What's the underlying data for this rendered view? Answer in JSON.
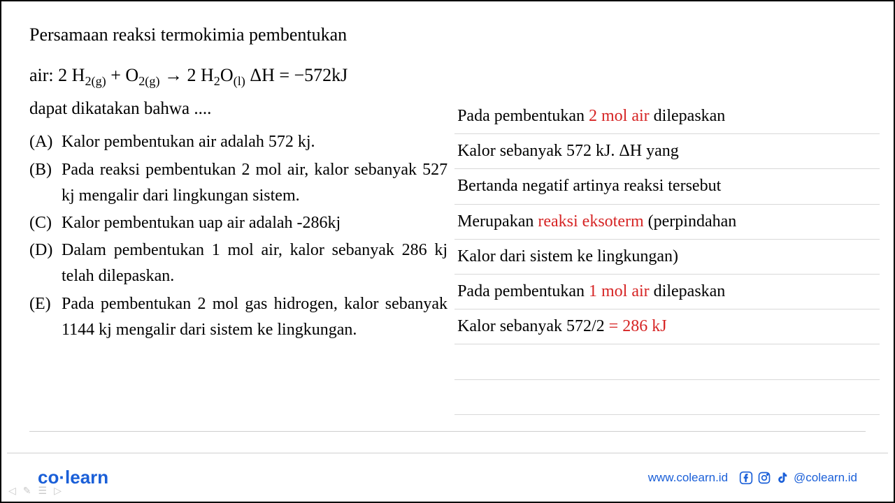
{
  "question": {
    "title": "Persamaan reaksi termokimia pembentukan",
    "equation_prefix": "air:",
    "equation_html": "2 H<sub>2(g)</sub> + O<sub>2(g)</sub> → 2 H<sub>2</sub>O<sub>(l)</sub> ΔH = −572kJ",
    "statement": "dapat dikatakan bahwa ....",
    "options": [
      {
        "label": "(A)",
        "text": "Kalor pembentukan air adalah 572 kj."
      },
      {
        "label": "(B)",
        "text": "Pada reaksi pembentukan 2 mol air, kalor sebanyak 527 kj mengalir dari lingkungan sistem."
      },
      {
        "label": "(C)",
        "text": "Kalor pembentukan uap air adalah -286kj"
      },
      {
        "label": "(D)",
        "text": "Dalam pembentukan 1 mol air, kalor sebanyak 286 kj telah dilepaskan."
      },
      {
        "label": "(E)",
        "text": "Pada pembentukan 2 mol gas hidrogen, kalor sebanyak 1144 kj mengalir dari sistem ke lingkungan."
      }
    ]
  },
  "notes": {
    "lines": [
      {
        "parts": [
          {
            "t": "Pada pembentukan "
          },
          {
            "t": "2 mol air",
            "red": true
          },
          {
            "t": " dilepaskan"
          }
        ]
      },
      {
        "parts": [
          {
            "t": "Kalor sebanyak 572 kJ. ΔH yang"
          }
        ]
      },
      {
        "parts": [
          {
            "t": "Bertanda negatif artinya reaksi tersebut"
          }
        ]
      },
      {
        "parts": [
          {
            "t": "Merupakan "
          },
          {
            "t": "reaksi eksoterm",
            "red": true
          },
          {
            "t": " (perpindahan"
          }
        ]
      },
      {
        "parts": [
          {
            "t": "Kalor dari sistem ke lingkungan)"
          }
        ]
      },
      {
        "parts": [
          {
            "t": "Pada pembentukan "
          },
          {
            "t": "1 mol air",
            "red": true
          },
          {
            "t": " dilepaskan"
          }
        ]
      },
      {
        "parts": [
          {
            "t": "Kalor sebanyak 572/2 "
          },
          {
            "t": "= 286 kJ",
            "red": true
          }
        ]
      },
      {
        "parts": [
          {
            "t": " "
          }
        ]
      },
      {
        "parts": [
          {
            "t": " "
          }
        ]
      }
    ]
  },
  "footer": {
    "logo_co": "co",
    "logo_learn": "learn",
    "website": "www.colearn.id",
    "handle": "@colearn.id"
  },
  "colors": {
    "red": "#d62424",
    "blue": "#1a5fd8",
    "border_gray": "#d8d8d8"
  }
}
